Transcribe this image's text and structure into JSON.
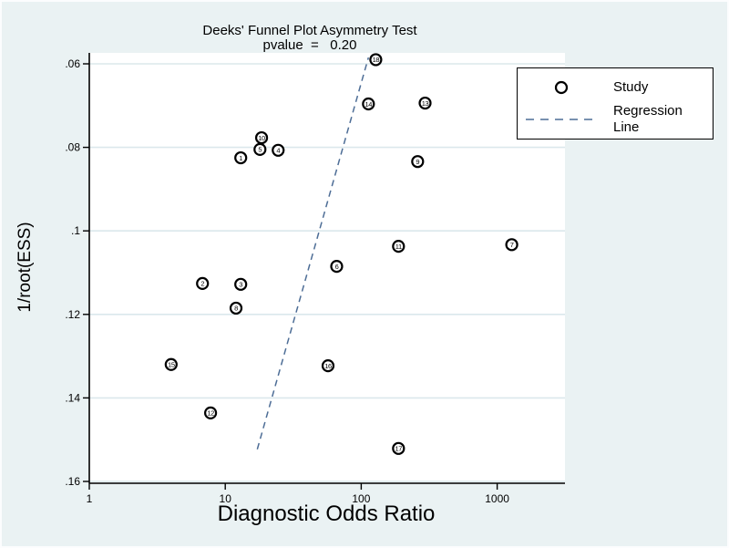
{
  "figure": {
    "title_line1": "Deeks' Funnel Plot Asymmetry Test",
    "title_line2": "pvalue  =   0.20"
  },
  "legend": {
    "study_label": "Study",
    "regression_label": "Regression Line"
  },
  "colors": {
    "background": "#eaf2f3",
    "plot_background": "#ffffff",
    "gridline": "#dbe8ec",
    "axis": "#000000",
    "text": "#000000",
    "marker_stroke": "#000000",
    "marker_fill": "#ffffff",
    "regression": "#4d6d96",
    "legend_border": "#000000"
  },
  "chart_data": {
    "type": "scatter",
    "title": "Deeks' Funnel Plot Asymmetry Test",
    "subtitle": "pvalue = 0.20",
    "pvalue": "0.20",
    "xlabel": "Diagnostic Odds Ratio",
    "ylabel": "1/root(ESS)",
    "x_scale": "log10",
    "y_inverted": true,
    "legend_position": "top-right",
    "grid": "horizontal",
    "x_ticks": [
      {
        "label": "1",
        "value": 1
      },
      {
        "label": "10",
        "value": 10
      },
      {
        "label": "100",
        "value": 100
      },
      {
        "label": "1000",
        "value": 1000
      }
    ],
    "y_ticks": [
      {
        "label": ".06",
        "value": 0.06
      },
      {
        "label": ".08",
        "value": 0.08
      },
      {
        "label": ".1",
        "value": 0.1
      },
      {
        "label": ".12",
        "value": 0.12
      },
      {
        "label": ".14",
        "value": 0.14
      },
      {
        "label": ".16",
        "value": 0.16
      }
    ],
    "xlim": [
      1,
      3000
    ],
    "ylim_top_to_bottom": [
      0.057,
      0.163
    ],
    "series_name": "Study",
    "studies": [
      {
        "id": 1,
        "dor": 13,
        "y": 0.0825
      },
      {
        "id": 2,
        "dor": 6.8,
        "y": 0.1126
      },
      {
        "id": 3,
        "dor": 13,
        "y": 0.1128
      },
      {
        "id": 4,
        "dor": 24.5,
        "y": 0.0807
      },
      {
        "id": 5,
        "dor": 18,
        "y": 0.0805
      },
      {
        "id": 6,
        "dor": 66,
        "y": 0.1085
      },
      {
        "id": 7,
        "dor": 1280,
        "y": 0.1033
      },
      {
        "id": 8,
        "dor": 12,
        "y": 0.1185
      },
      {
        "id": 9,
        "dor": 260,
        "y": 0.0834
      },
      {
        "id": 10,
        "dor": 18.5,
        "y": 0.0777
      },
      {
        "id": 11,
        "dor": 188,
        "y": 0.1037
      },
      {
        "id": 12,
        "dor": 7.8,
        "y": 0.1436
      },
      {
        "id": 13,
        "dor": 295,
        "y": 0.0694
      },
      {
        "id": 14,
        "dor": 113,
        "y": 0.0696
      },
      {
        "id": 15,
        "dor": 4.0,
        "y": 0.132
      },
      {
        "id": 16,
        "dor": 57,
        "y": 0.1323
      },
      {
        "id": 17,
        "dor": 188,
        "y": 0.1521
      },
      {
        "id": 18,
        "dor": 128,
        "y": 0.059
      }
    ],
    "regression_line": {
      "x1": 17.2,
      "y1": 0.1523,
      "x2": 113,
      "y2": 0.0585
    }
  }
}
